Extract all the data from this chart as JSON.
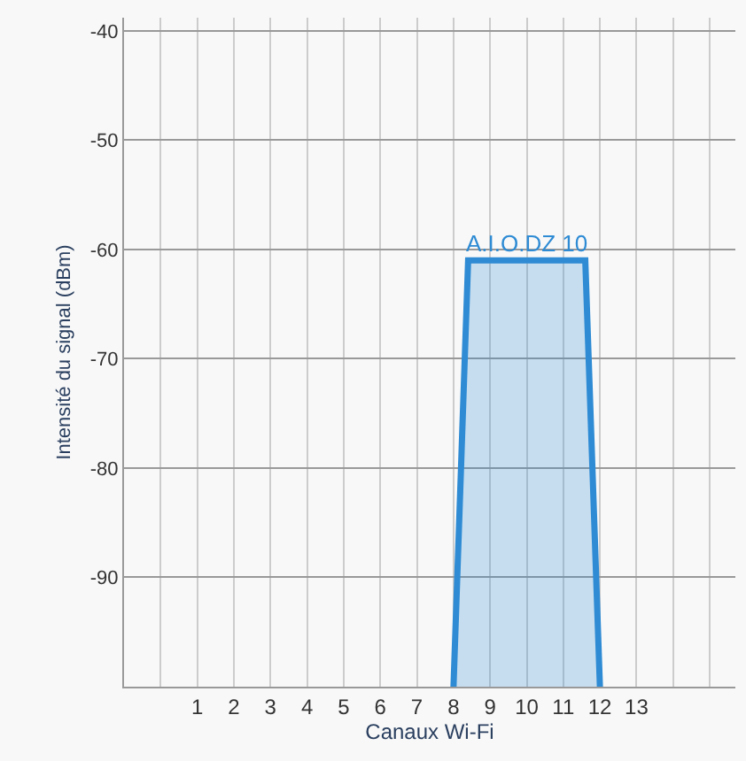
{
  "chart_data": {
    "type": "area",
    "xlabel": "Canaux Wi-Fi",
    "ylabel": "Intensité du signal (dBm)",
    "series": [
      {
        "name": "A.I.O.DZ 10",
        "color": "#2e8bd4",
        "x": [
          8,
          8.4,
          11.6,
          12
        ],
        "values": [
          -100,
          -61,
          -61,
          -100
        ]
      }
    ],
    "xlim": [
      -1,
      15.7
    ],
    "xticks": [
      {
        "value": -1,
        "label": null
      },
      {
        "value": 0,
        "label": null
      },
      1,
      2,
      3,
      4,
      5,
      6,
      7,
      8,
      9,
      10,
      11,
      12,
      13,
      {
        "value": 14,
        "label": null
      },
      {
        "value": 15,
        "label": null
      }
    ],
    "ylim": [
      -100,
      -38.8
    ],
    "yticks": [
      {
        "value": -100,
        "label": null
      },
      -90,
      -80,
      -70,
      -60,
      -50,
      -40
    ],
    "grid": true,
    "legend": false
  }
}
